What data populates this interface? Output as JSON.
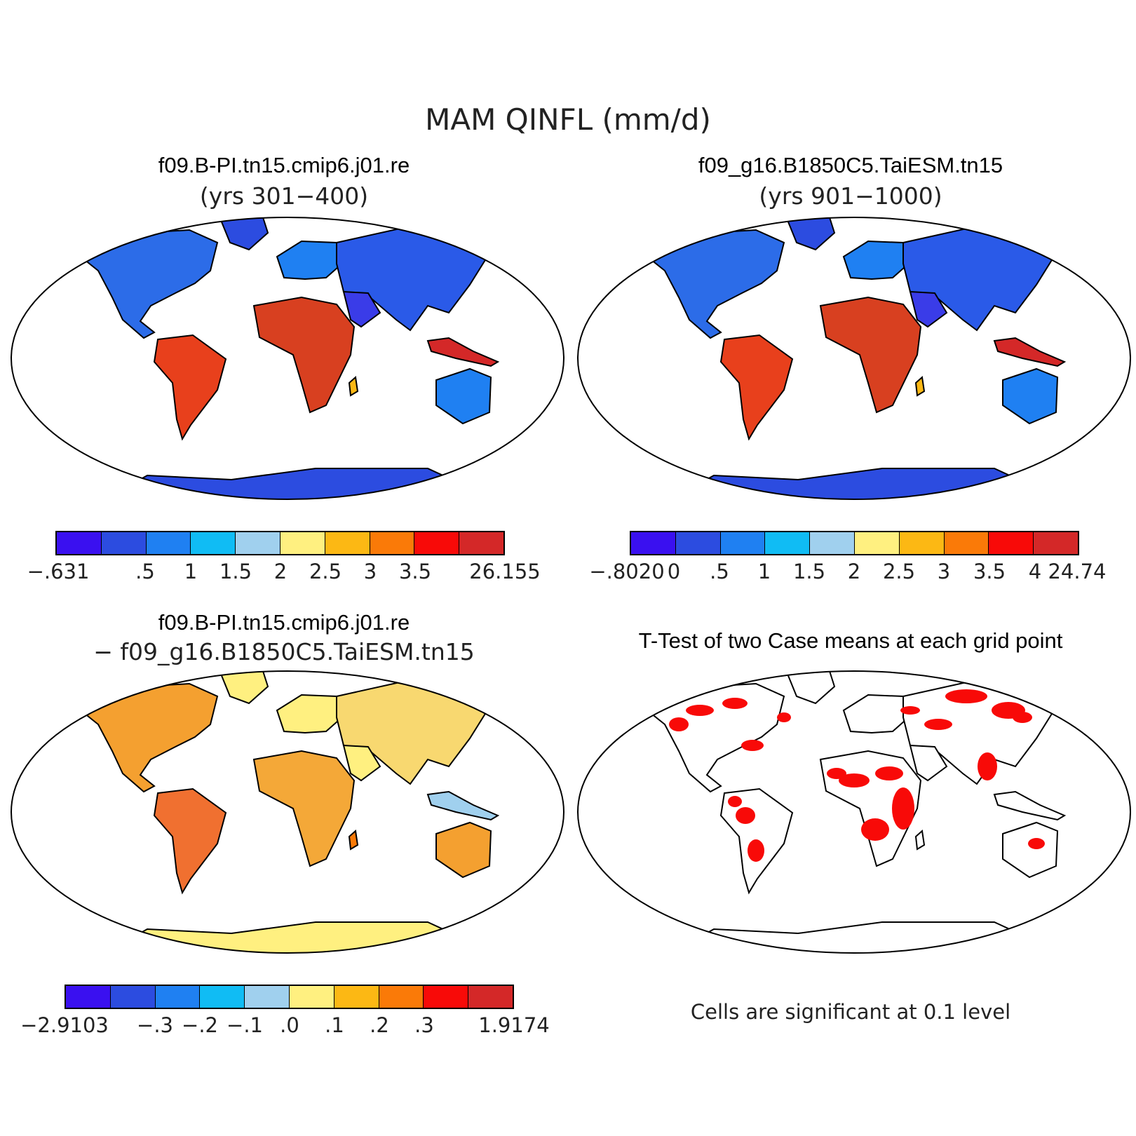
{
  "title": "MAM QINFL (mm/d)",
  "panels": [
    {
      "id": "top-left",
      "title": "f09.B-PI.tn15.cmip6.j01.re",
      "subtitle": "(yrs 301−400)",
      "colorbar": {
        "colors": [
          "#3a10f0",
          "#2c4ce0",
          "#1f80f2",
          "#10bcf4",
          "#a0d0ee",
          "#fff080",
          "#fcb814",
          "#fa7a08",
          "#f80a08",
          "#d42828"
        ],
        "labels": [
          "−.631",
          ".5",
          "1",
          "1.5",
          "2",
          "2.5",
          "3",
          "3.5",
          "26.155"
        ]
      }
    },
    {
      "id": "top-right",
      "title": "f09_g16.B1850C5.TaiESM.tn15",
      "subtitle": "(yrs 901−1000)",
      "colorbar": {
        "colors": [
          "#3a10f0",
          "#2c4ce0",
          "#1f80f2",
          "#10bcf4",
          "#a0d0ee",
          "#fff080",
          "#fcb814",
          "#fa7a08",
          "#f80a08",
          "#d42828"
        ],
        "labels": [
          "−.8020",
          "0",
          ".5",
          "1",
          "1.5",
          "2",
          "2.5",
          "3",
          "3.5",
          "4",
          "24.74"
        ]
      }
    },
    {
      "id": "bottom-left",
      "title": "f09.B-PI.tn15.cmip6.j01.re",
      "subtitle": "− f09_g16.B1850C5.TaiESM.tn15",
      "colorbar": {
        "colors": [
          "#3a10f0",
          "#2c4ce0",
          "#1f80f2",
          "#10bcf4",
          "#a0d0ee",
          "#fff080",
          "#fcb814",
          "#fa7a08",
          "#f80a08",
          "#d42828"
        ],
        "labels": [
          "−2.9103",
          "−.3",
          "−.2",
          "−.1",
          ".0",
          ".1",
          ".2",
          ".3",
          "1.9174"
        ]
      }
    },
    {
      "id": "bottom-right",
      "title": "T-Test of two Case means at each grid point",
      "note": "Cells are significant at 0.1 level"
    }
  ]
}
